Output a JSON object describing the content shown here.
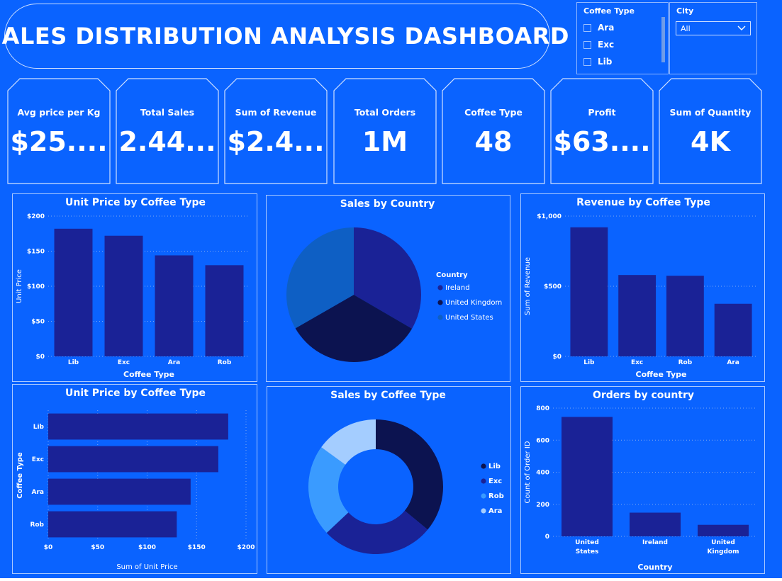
{
  "header": {
    "title": "SALES DISTRIBUTION ANALYSIS DASHBOARD"
  },
  "slicers": {
    "coffee_type": {
      "header": "Coffee Type",
      "options": [
        "Ara",
        "Exc",
        "Lib"
      ]
    },
    "city": {
      "header": "City",
      "selected": "All"
    }
  },
  "kpis": [
    {
      "label": "Avg price per Kg",
      "value": "$25...."
    },
    {
      "label": "Total Sales",
      "value": "2.44..."
    },
    {
      "label": "Sum of Revenue",
      "value": "$2.4..."
    },
    {
      "label": "Total Orders",
      "value": "1M"
    },
    {
      "label": "Coffee Type",
      "value": "48"
    },
    {
      "label": "Profit",
      "value": "$63...."
    },
    {
      "label": "Sum of Quantity",
      "value": "4K"
    }
  ],
  "colors": {
    "background": "#0a63ff",
    "bar": "#1a2296",
    "dark_navy": "#0c1350",
    "mid_blue": "#0e5fc4",
    "light_blue": "#3a9bff",
    "pale_blue": "#a4cdff",
    "grid": "#7fa8f0"
  },
  "chart_data": [
    {
      "type": "bar",
      "title": "Unit Price by Coffee Type",
      "categories": [
        "Lib",
        "Exc",
        "Ara",
        "Rob"
      ],
      "values": [
        182,
        172,
        144,
        130
      ],
      "xlabel": "Coffee Type",
      "ylabel": "Unit Price",
      "ylim": [
        0,
        200
      ],
      "yticks": [
        "$0",
        "$50",
        "$100",
        "$150",
        "$200"
      ],
      "grid": true
    },
    {
      "type": "pie",
      "title": "Sales by Country",
      "legend_title": "Country",
      "slices": [
        {
          "label": "Ireland",
          "value": 33.4,
          "color": "#1a2296"
        },
        {
          "label": "United Kingdom",
          "value": 33.3,
          "color": "#0c1350"
        },
        {
          "label": "United States",
          "value": 33.3,
          "color": "#0e5fc4"
        }
      ],
      "legend": "right"
    },
    {
      "type": "bar",
      "title": "Revenue by Coffee Type",
      "categories": [
        "Lib",
        "Exc",
        "Rob",
        "Ara"
      ],
      "values": [
        920,
        580,
        575,
        375
      ],
      "xlabel": "Coffee Type",
      "ylabel": "Sum of Revenue",
      "ylim": [
        0,
        1000
      ],
      "yticks": [
        "$0",
        "$500",
        "$1,000"
      ],
      "grid": true
    },
    {
      "type": "bar",
      "orientation": "horizontal",
      "title": "Unit Price by Coffee Type",
      "categories": [
        "Lib",
        "Exc",
        "Ara",
        "Rob"
      ],
      "values": [
        182,
        172,
        144,
        130
      ],
      "xlabel": "Sum of Unit Price",
      "ylabel": "Coffee Type",
      "xlim": [
        0,
        200
      ],
      "xticks": [
        "$0",
        "$50",
        "$100",
        "$150",
        "$200"
      ],
      "grid": true
    },
    {
      "type": "pie",
      "donut": true,
      "title": "Sales by Coffee Type",
      "slices": [
        {
          "label": "Lib",
          "value": 36,
          "color": "#0c1350"
        },
        {
          "label": "Exc",
          "value": 27,
          "color": "#1a2296"
        },
        {
          "label": "Rob",
          "value": 22,
          "color": "#3a9bff"
        },
        {
          "label": "Ara",
          "value": 15,
          "color": "#a4cdff"
        }
      ],
      "legend": "right"
    },
    {
      "type": "bar",
      "title": "Orders by country",
      "categories": [
        "United States",
        "Ireland",
        "United Kingdom"
      ],
      "values": [
        745,
        148,
        72
      ],
      "xlabel": "Country",
      "ylabel": "Count of Order ID",
      "ylim": [
        0,
        800
      ],
      "yticks": [
        "0",
        "200",
        "400",
        "600",
        "800"
      ],
      "grid": true
    }
  ]
}
